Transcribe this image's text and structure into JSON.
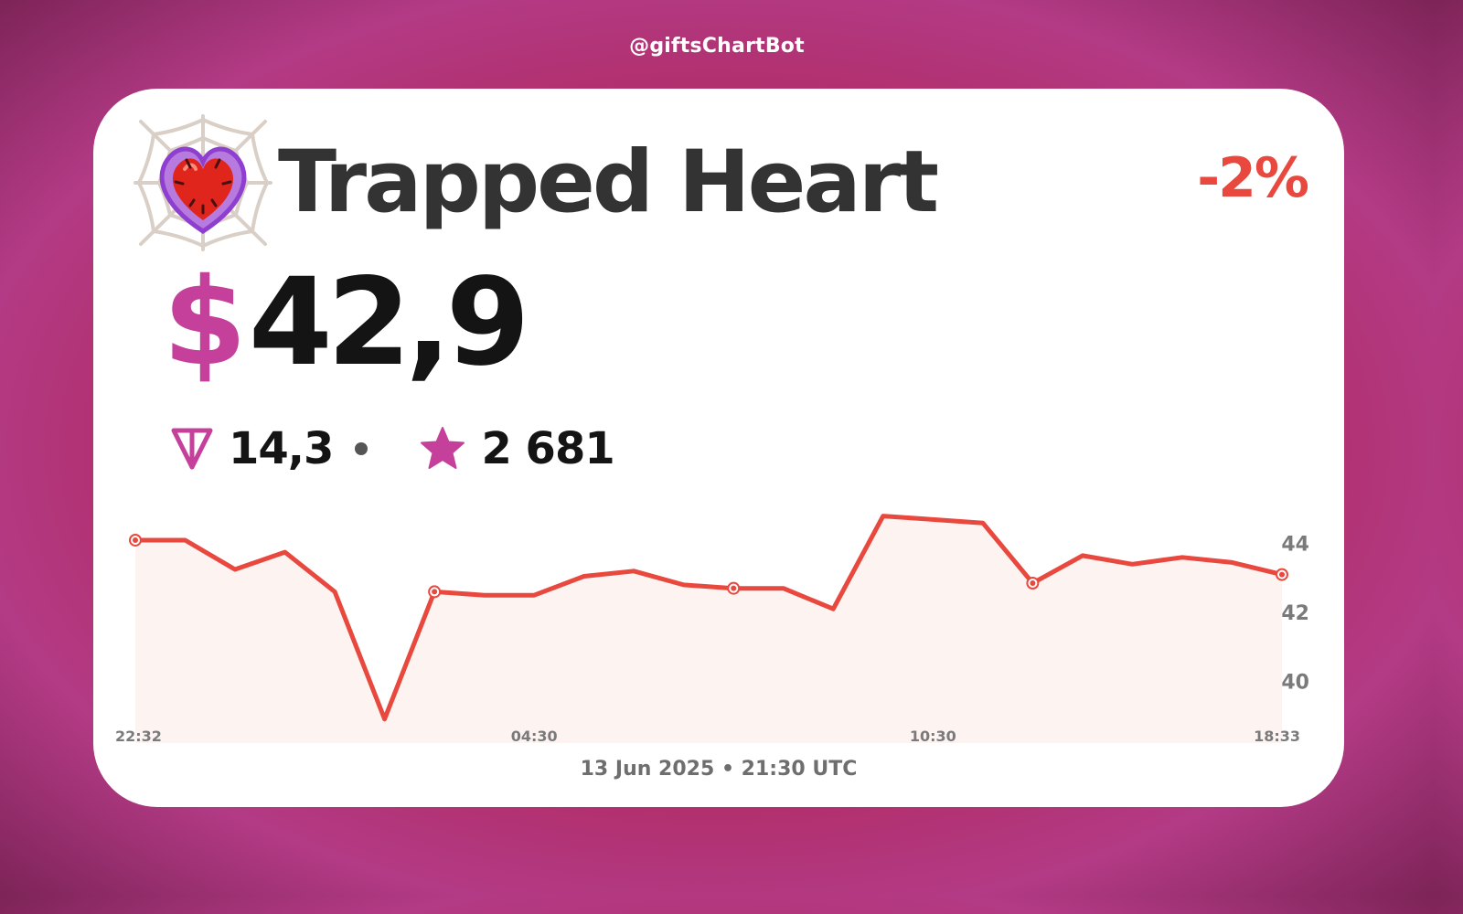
{
  "header": {
    "bot_handle": "@giftsChartBot"
  },
  "gift": {
    "name": "Trapped Heart",
    "icon": "trapped-heart-icon",
    "change": "-2%",
    "currency_symbol": "$",
    "price_usd": "42,9",
    "ton_icon": "ton-icon",
    "price_ton": "14,3",
    "star_icon": "star-icon",
    "price_stars": "2 681"
  },
  "colors": {
    "accent": "#c4409a",
    "line": "#e8483d",
    "negative": "#e8483d",
    "fill": "#fdf3f1"
  },
  "chart_data": {
    "type": "line",
    "x_ticks": [
      "22:32",
      "04:30",
      "10:30",
      "18:33"
    ],
    "y_ticks": [
      40,
      42,
      44
    ],
    "ylim": [
      38.2,
      45.8
    ],
    "xlim": [
      0,
      23
    ],
    "grid": false,
    "series": [
      {
        "values": [
          44.1,
          44.1,
          43.25,
          43.75,
          42.6,
          38.9,
          42.6,
          42.5,
          42.5,
          43.05,
          43.2,
          42.8,
          42.7,
          42.7,
          42.1,
          44.8,
          44.7,
          44.6,
          42.85,
          43.65,
          43.4,
          43.6,
          43.45,
          43.1
        ],
        "markers": [
          0,
          6,
          12,
          18,
          23
        ]
      }
    ]
  },
  "footer": {
    "date": "13 Jun 2025 • 21:30 UTC"
  }
}
